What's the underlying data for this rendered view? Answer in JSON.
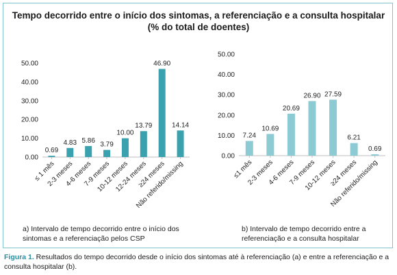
{
  "figure": {
    "title_line1": "Tempo decorrido entre o início dos sintomas, a referenciação e a consulta hospitalar",
    "title_line2": "(% do total de doentes)",
    "caption_label": "Figura 1.",
    "caption_text": " Resultados do tempo decorrido desde o início dos sintomas até à referenciação (a) e entre a referenciação e a consulta hospitalar (b)."
  },
  "chart_data": [
    {
      "type": "bar",
      "panel_caption": "a) Intervalo de tempo decorrido entre o início dos sintomas e a referenciação pelos CSP",
      "categories": [
        "≤ 1 mês",
        "2-3 meses",
        "4-6 meses",
        "7-9 meses",
        "10-12 meses",
        "12-24 meses",
        "≥24 meses",
        "Não referido/missing"
      ],
      "values": [
        0.69,
        4.83,
        5.86,
        3.79,
        10.0,
        13.79,
        46.9,
        14.14
      ],
      "data_labels": [
        "0.69",
        "4.83",
        "5.86",
        "3.79",
        "10.00",
        "13.79",
        "46.90",
        "14.14"
      ],
      "ylim": [
        0,
        50
      ],
      "yticks": [
        "0.00",
        "10.00",
        "20.00",
        "30.00",
        "40.00",
        "50.00"
      ],
      "color": "#3aa1ae",
      "grid": false
    },
    {
      "type": "bar",
      "panel_caption": "b) Intervalo de tempo decorrido entre a referenciação e a consulta hospitalar",
      "categories": [
        "≤1 mês",
        "2-3 meses",
        "4-6 meses",
        "7-9 meses",
        "10-12 meses",
        "≥24 meses",
        "Não referido/missing"
      ],
      "values": [
        7.24,
        10.69,
        20.69,
        26.9,
        27.59,
        6.21,
        0.69
      ],
      "data_labels": [
        "7.24",
        "10.69",
        "20.69",
        "26.90",
        "27.59",
        "6.21",
        "0.69"
      ],
      "ylim": [
        0,
        50
      ],
      "yticks": [
        "0.00",
        "10.00",
        "20.00",
        "30.00",
        "40.00",
        "50.00"
      ],
      "color": "#8ccbd3",
      "grid": false
    }
  ]
}
